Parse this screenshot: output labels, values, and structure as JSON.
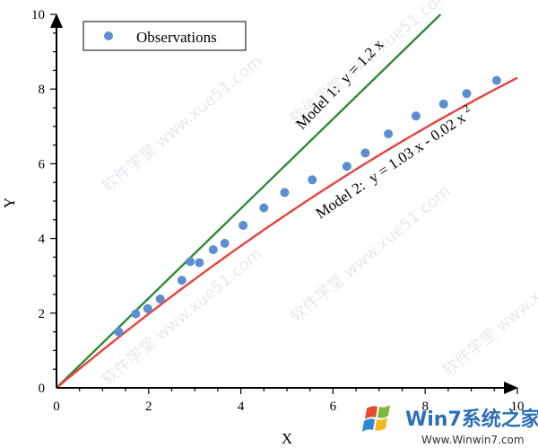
{
  "colors": {
    "observation": "#5b8fd0",
    "model1": "#2e8b3a",
    "model2": "#e8413c",
    "axis": "#000000",
    "watermark": "#cfd8e6"
  },
  "watermark_text": "软件学堂 www.xue51.com",
  "badge": {
    "logo_text": "Win7系统之家",
    "url": "Www.Winwin7.com"
  },
  "chart_data": {
    "type": "scatter",
    "title": "",
    "xlabel": "X",
    "ylabel": "Y",
    "xlim": [
      0,
      10
    ],
    "ylim": [
      0,
      10
    ],
    "xticks": [
      0,
      2,
      4,
      6,
      8,
      10
    ],
    "yticks": [
      0,
      2,
      4,
      6,
      8,
      10
    ],
    "legend": {
      "position": "top-left",
      "entries": [
        "Observations"
      ]
    },
    "series": [
      {
        "name": "Observations",
        "kind": "points",
        "x": [
          1.35,
          1.72,
          1.98,
          2.25,
          2.72,
          2.9,
          3.1,
          3.4,
          3.65,
          4.05,
          4.5,
          4.95,
          5.55,
          6.3,
          6.7,
          7.2,
          7.8,
          8.4,
          8.9,
          9.55
        ],
        "y": [
          1.5,
          1.98,
          2.12,
          2.38,
          2.88,
          3.38,
          3.35,
          3.7,
          3.87,
          4.35,
          4.82,
          5.23,
          5.57,
          5.93,
          6.29,
          6.8,
          7.28,
          7.6,
          7.88,
          8.23
        ]
      },
      {
        "name": "Model 1",
        "kind": "line",
        "equation": "y = 1.2 x",
        "coef": {
          "a": 1.2,
          "b": 0
        }
      },
      {
        "name": "Model 2",
        "kind": "line",
        "equation": "y = 1.03 x - 0.02 x",
        "exponent": "2",
        "coef": {
          "a": 1.03,
          "b": -0.02
        }
      }
    ],
    "annotations": {
      "model1": {
        "prefix": "Model 1:",
        "equation": "y = 1.2 x"
      },
      "model2": {
        "prefix": "Model 2:",
        "equation": "y = 1.03 x - 0.02 x",
        "superscript": "2"
      }
    }
  }
}
